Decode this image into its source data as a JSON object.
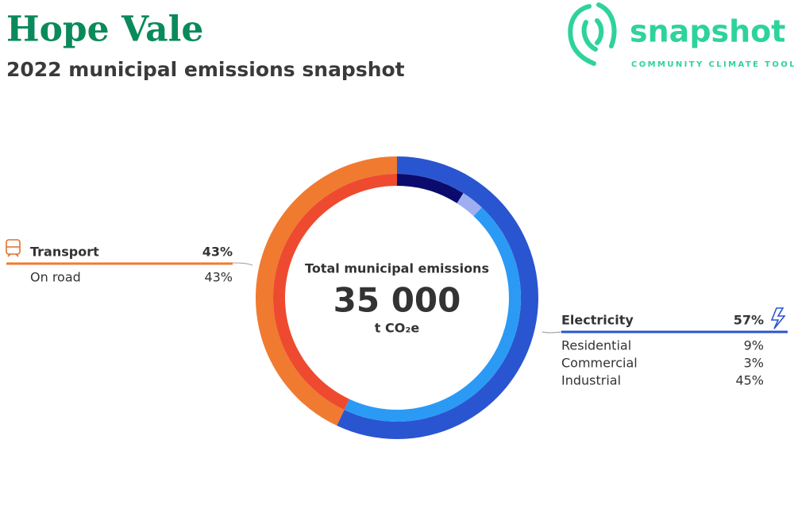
{
  "logo": {
    "name": "snapshot",
    "tagline": "COMMUNITY CLIMATE TOOL"
  },
  "chart_data": {
    "type": "donut",
    "title": "Hope Vale",
    "subtitle": "2022 municipal emissions snapshot",
    "center_label": "Total municipal emissions",
    "total": {
      "value": 35000,
      "label": "35 000"
    },
    "unit": "t CO₂e",
    "groups": [
      {
        "name": "Electricity",
        "color": "#2a55d0",
        "value": 57,
        "value_label": "57%",
        "items": [
          {
            "name": "Residential",
            "color": "#0b0b6e",
            "value": 9,
            "value_label": "9%"
          },
          {
            "name": "Commercial",
            "color": "#9eaef0",
            "value": 3,
            "value_label": "3%"
          },
          {
            "name": "Industrial",
            "color": "#2a9af5",
            "value": 45,
            "value_label": "45%"
          }
        ]
      },
      {
        "name": "Transport",
        "color": "#f07a30",
        "value": 43,
        "value_label": "43%",
        "items": [
          {
            "name": "On road",
            "color": "#ee4a2f",
            "value": 43,
            "value_label": "43%"
          }
        ]
      }
    ]
  }
}
